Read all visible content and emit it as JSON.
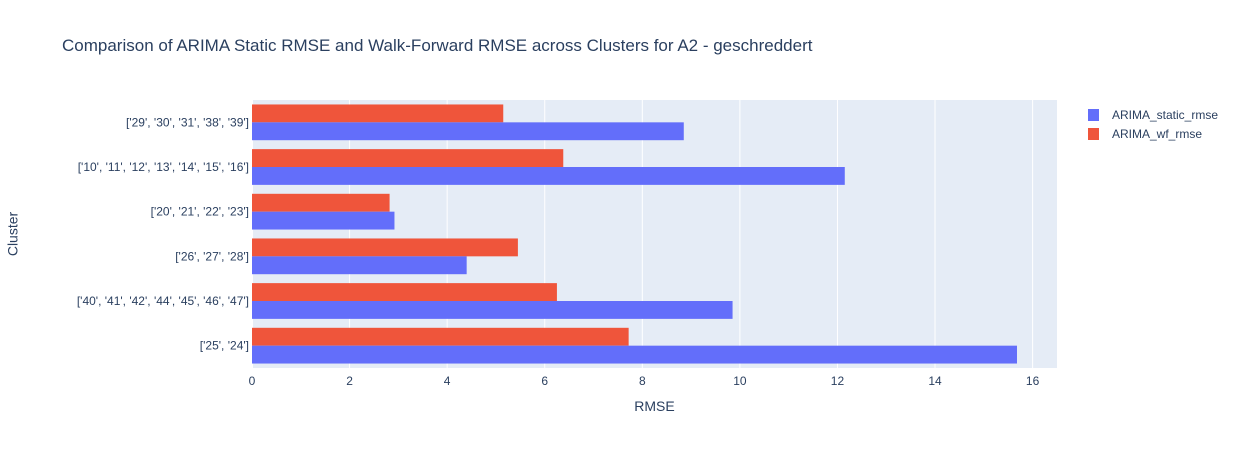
{
  "chart_data": {
    "type": "bar",
    "orientation": "horizontal",
    "title": "Comparison of ARIMA Static RMSE and Walk-Forward RMSE across Clusters for A2 -  geschreddert",
    "xlabel": "RMSE",
    "ylabel": "Cluster",
    "xlim": [
      0,
      16.5
    ],
    "xticks": [
      0,
      2,
      4,
      6,
      8,
      10,
      12,
      14,
      16
    ],
    "grid": true,
    "legend_position": "top-right",
    "categories": [
      "['29', '30', '31', '38', '39']",
      "['10', '11', '12', '13', '14', '15', '16']",
      "['20', '21', '22', '23']",
      "['26', '27', '28']",
      "['40', '41', '42', '44', '45', '46', '47']",
      "['25', '24']"
    ],
    "series": [
      {
        "name": "ARIMA_static_rmse",
        "color": "#636efa",
        "values": [
          8.85,
          12.15,
          2.92,
          4.4,
          9.85,
          15.68
        ]
      },
      {
        "name": "ARIMA_wf_rmse",
        "color": "#ef553b",
        "values": [
          5.15,
          6.38,
          2.82,
          5.45,
          6.25,
          7.72
        ]
      }
    ]
  }
}
